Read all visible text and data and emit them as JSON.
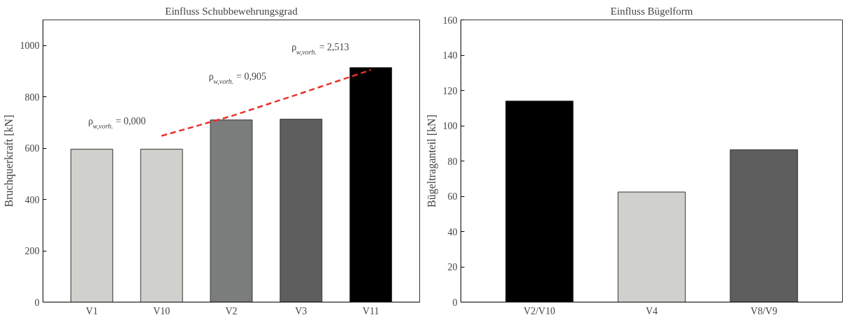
{
  "chart_data": [
    {
      "type": "bar",
      "title": "Einfluss Schubbewehrungsgrad",
      "ylabel": "Bruchquerkraft [kN]",
      "categories": [
        "V1",
        "V10",
        "V2",
        "V3",
        "V11"
      ],
      "ylim": [
        0,
        1100
      ],
      "yticks": [
        0,
        200,
        400,
        600,
        800,
        1000
      ],
      "grid": false,
      "series": [
        {
          "colors": [
            "#d0d0cc",
            "#d0d0cc",
            "#7a7d7b",
            "#5e5e5e",
            "#000000"
          ],
          "values": [
            596,
            596,
            710,
            713,
            914
          ]
        },
        {
          "type": "line",
          "color": "#e8302a",
          "line_style": "dashed",
          "values": [
            null,
            648,
            725,
            814,
            905
          ]
        }
      ],
      "annotations": [
        "ρ$_{w,vorh.}$ = 0,000",
        "ρ$_{w,vorh.}$ = 0,905",
        "ρ$_{w,vorh.}$ = 2,513"
      ]
    },
    {
      "type": "bar",
      "title": "Einfluss Bügelform",
      "ylabel": "Bügeltraganteil [kN]",
      "categories": [
        "V2/V10",
        "V4",
        "V8/V9"
      ],
      "ylim": [
        0,
        160
      ],
      "yticks": [
        0,
        20,
        40,
        60,
        80,
        100,
        120,
        140,
        160
      ],
      "grid": false,
      "series": [
        {
          "type": "bar",
          "colors": [
            "#000000",
            "#d0d0cc",
            "#5e5e5e"
          ],
          "values": [
            114,
            62.4,
            86.4
          ]
        }
      ]
    }
  ]
}
